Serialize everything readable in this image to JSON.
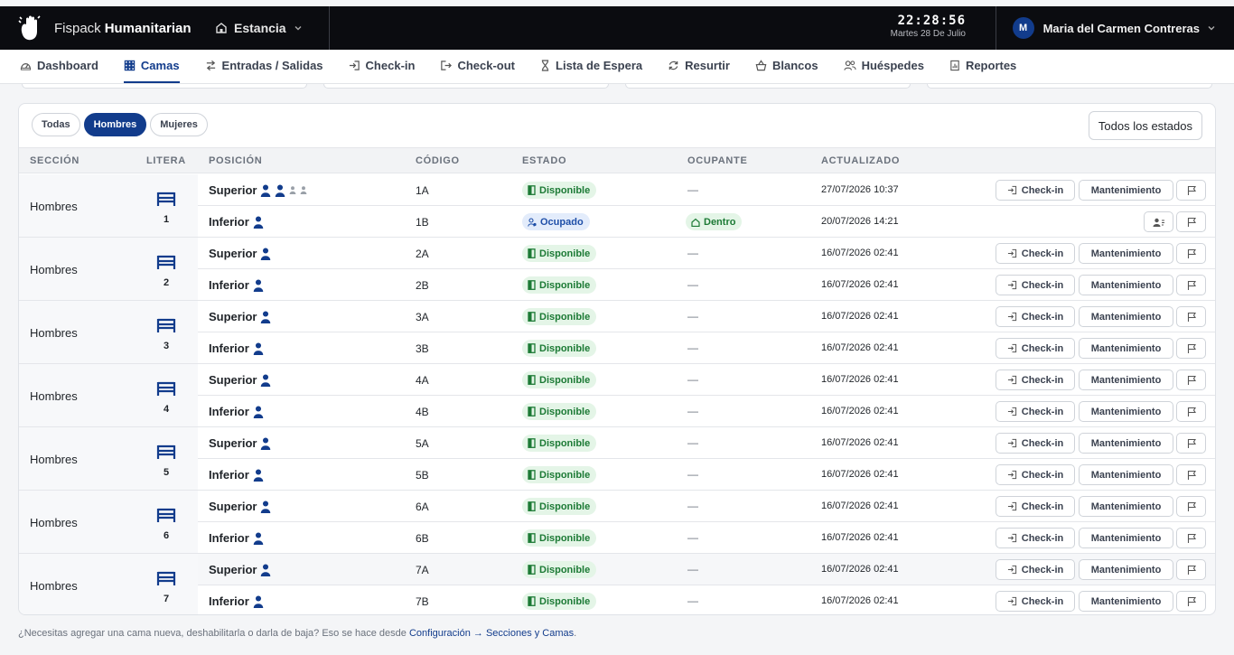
{
  "header": {
    "brand_light": "Fispack",
    "brand_bold": "Humanitarian",
    "location": "Estancia",
    "time": "22:28:56",
    "date": "Martes 28 De Julio",
    "user_initial": "M",
    "user_name": "Maria del Carmen Contreras"
  },
  "nav": {
    "items": [
      {
        "label": "Dashboard",
        "icon": "dashboard-icon"
      },
      {
        "label": "Camas",
        "icon": "grid-icon",
        "active": true
      },
      {
        "label": "Entradas / Salidas",
        "icon": "swap-icon"
      },
      {
        "label": "Check-in",
        "icon": "login-icon"
      },
      {
        "label": "Check-out",
        "icon": "logout-icon"
      },
      {
        "label": "Lista de Espera",
        "icon": "hourglass-icon"
      },
      {
        "label": "Resurtir",
        "icon": "refresh-icon"
      },
      {
        "label": "Blancos",
        "icon": "basket-icon"
      },
      {
        "label": "Huéspedes",
        "icon": "users-icon"
      },
      {
        "label": "Reportes",
        "icon": "report-icon"
      }
    ]
  },
  "filters": {
    "all": "Todas",
    "men": "Hombres",
    "women": "Mujeres",
    "active": "Hombres",
    "status_select": "Todos los estados"
  },
  "table": {
    "headers": {
      "section": "SECCIÓN",
      "bunk": "LITERA",
      "position": "POSICIÓN",
      "code": "CÓDIGO",
      "status": "ESTADO",
      "occupant": "OCUPANTE",
      "updated": "ACTUALIZADO"
    },
    "groups": [
      {
        "section": "Hombres",
        "bunk": "1",
        "rows": [
          {
            "position": "Superior",
            "code": "1A",
            "status": "Disponible",
            "occupant": "—",
            "updated": "27/07/2026 10:37",
            "extra_icons": true
          },
          {
            "position": "Inferior",
            "code": "1B",
            "status": "Ocupado",
            "occupant": "Dentro",
            "updated": "20/07/2026 14:21"
          }
        ]
      },
      {
        "section": "Hombres",
        "bunk": "2",
        "rows": [
          {
            "position": "Superior",
            "code": "2A",
            "status": "Disponible",
            "occupant": "—",
            "updated": "16/07/2026 02:41"
          },
          {
            "position": "Inferior",
            "code": "2B",
            "status": "Disponible",
            "occupant": "—",
            "updated": "16/07/2026 02:41"
          }
        ]
      },
      {
        "section": "Hombres",
        "bunk": "3",
        "rows": [
          {
            "position": "Superior",
            "code": "3A",
            "status": "Disponible",
            "occupant": "—",
            "updated": "16/07/2026 02:41"
          },
          {
            "position": "Inferior",
            "code": "3B",
            "status": "Disponible",
            "occupant": "—",
            "updated": "16/07/2026 02:41"
          }
        ]
      },
      {
        "section": "Hombres",
        "bunk": "4",
        "rows": [
          {
            "position": "Superior",
            "code": "4A",
            "status": "Disponible",
            "occupant": "—",
            "updated": "16/07/2026 02:41"
          },
          {
            "position": "Inferior",
            "code": "4B",
            "status": "Disponible",
            "occupant": "—",
            "updated": "16/07/2026 02:41"
          }
        ]
      },
      {
        "section": "Hombres",
        "bunk": "5",
        "rows": [
          {
            "position": "Superior",
            "code": "5A",
            "status": "Disponible",
            "occupant": "—",
            "updated": "16/07/2026 02:41"
          },
          {
            "position": "Inferior",
            "code": "5B",
            "status": "Disponible",
            "occupant": "—",
            "updated": "16/07/2026 02:41"
          }
        ]
      },
      {
        "section": "Hombres",
        "bunk": "6",
        "rows": [
          {
            "position": "Superior",
            "code": "6A",
            "status": "Disponible",
            "occupant": "—",
            "updated": "16/07/2026 02:41"
          },
          {
            "position": "Inferior",
            "code": "6B",
            "status": "Disponible",
            "occupant": "—",
            "updated": "16/07/2026 02:41"
          }
        ]
      },
      {
        "section": "Hombres",
        "bunk": "7",
        "rows": [
          {
            "position": "Superior",
            "code": "7A",
            "status": "Disponible",
            "occupant": "—",
            "updated": "16/07/2026 02:41"
          },
          {
            "position": "Inferior",
            "code": "7B",
            "status": "Disponible",
            "occupant": "—",
            "updated": "16/07/2026 02:41"
          }
        ]
      }
    ],
    "actions": {
      "checkin": "Check-in",
      "maintenance": "Mantenimiento"
    }
  },
  "footer": {
    "text": "¿Necesitas agregar una cama nueva, deshabilitarla o darla de baja? Eso se hace desde",
    "link": "Configuración → Secciones y Camas",
    "end": "."
  },
  "colors": {
    "brand": "#123c8c",
    "topbar": "#0b0c10",
    "available": "#1c7a35",
    "occupied": "#1f4fa8"
  }
}
